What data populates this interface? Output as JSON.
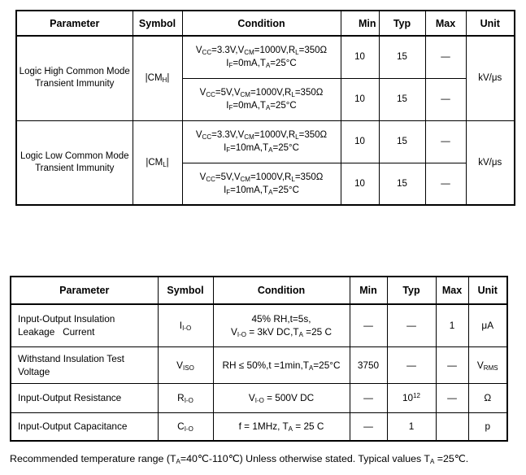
{
  "table1": {
    "headers": [
      "Parameter",
      "Symbol",
      "Condition",
      "Min",
      "Typ",
      "Max",
      "Unit"
    ],
    "groups": [
      {
        "parameter": "Logic High Common Mode Transient Immunity",
        "symbol": "|CM~H~|",
        "unit": "kV/μs",
        "rows": [
          {
            "cond1": "V~CC~=3.3V,V~CM~=1000V,R~L~=350Ω",
            "cond2": "I~F~=0mA,T~A~=25°C",
            "min": "10",
            "typ": "15",
            "max": "—"
          },
          {
            "cond1": "V~CC~=5V,V~CM~=1000V,R~L~=350Ω",
            "cond2": "I~F~=0mA,T~A~=25°C",
            "min": "10",
            "typ": "15",
            "max": "—"
          }
        ]
      },
      {
        "parameter": "Logic Low Common Mode Transient Immunity",
        "symbol": "|CM~L~|",
        "unit": "kV/μs",
        "rows": [
          {
            "cond1": "V~CC~=3.3V,V~CM~=1000V,R~L~=350Ω",
            "cond2": "I~F~=10mA,T~A~=25°C",
            "min": "10",
            "typ": "15",
            "max": "—"
          },
          {
            "cond1": "V~CC~=5V,V~CM~=1000V,R~L~=350Ω",
            "cond2": "I~F~=10mA,T~A~=25°C",
            "min": "10",
            "typ": "15",
            "max": "—"
          }
        ]
      }
    ]
  },
  "table2": {
    "headers": [
      "Parameter",
      "Symbol",
      "Condition",
      "Min",
      "Typ",
      "Max",
      "Unit"
    ],
    "rows": [
      {
        "parameter": "Input-Output Insulation\nLeakage   Current",
        "symbol": "I~I-O~",
        "cond1": "45% RH,t=5s,",
        "cond2": "V~I-O~ = 3kV DC,T~A~ =25 C",
        "min": "—",
        "typ": "—",
        "max": "1",
        "unit": "μA"
      },
      {
        "parameter": "Withstand Insulation Test\nVoltage",
        "symbol": "V~ISO~",
        "cond1": "RH ≤ 50%,t =1min,T~A~=25°C",
        "cond2": "",
        "min": "3750",
        "typ": "—",
        "max": "—",
        "unit": "V~RMS~"
      },
      {
        "parameter": "Input-Output Resistance",
        "symbol": "R~I-O~",
        "cond1": "V~I-O~ = 500V DC",
        "cond2": "",
        "min": "—",
        "typ": "10^12^",
        "max": "—",
        "unit": "Ω"
      },
      {
        "parameter": "Input-Output Capacitance",
        "symbol": "C~I-O~",
        "cond1": "f = 1MHz, T~A~ = 25 C",
        "cond2": "",
        "min": "—",
        "typ": "1",
        "max": "",
        "unit": "p"
      }
    ]
  },
  "footer": {
    "note": "Recommended temperature range (T~A~=40℃-110℃) Unless otherwise stated. Typical values T~A~ =25℃."
  },
  "colors": {
    "border": "#000000",
    "text": "#000000",
    "background": "#ffffff"
  }
}
